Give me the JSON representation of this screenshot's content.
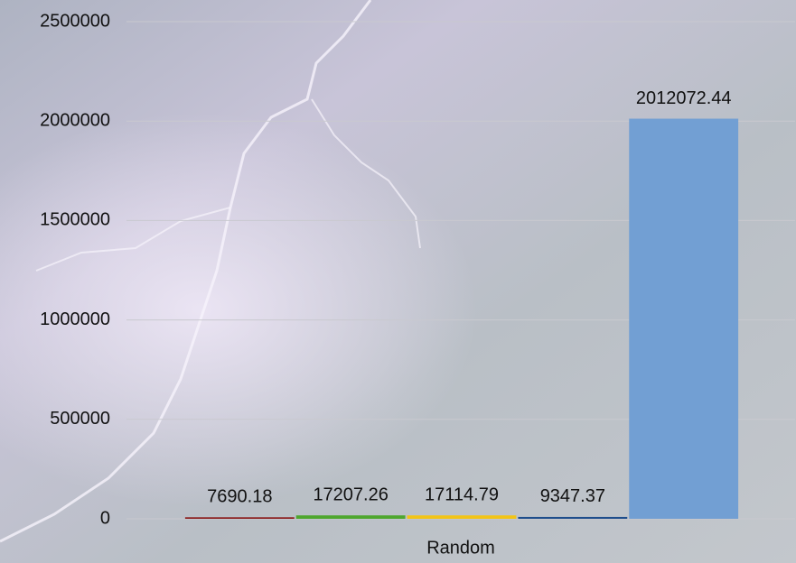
{
  "chart_data": {
    "type": "bar",
    "categories": [
      "Random"
    ],
    "series": [
      {
        "color": "#8b1c1c",
        "values": [
          7690.18
        ]
      },
      {
        "color": "#4ea72e",
        "values": [
          17207.26
        ]
      },
      {
        "color": "#f2c416",
        "values": [
          17114.79
        ]
      },
      {
        "color": "#1f4e8c",
        "values": [
          9347.37
        ]
      },
      {
        "color": "#729fd3",
        "values": [
          2012072.44
        ]
      }
    ],
    "ylim": [
      0,
      2500000
    ],
    "yticks": [
      0,
      500000,
      1000000,
      1500000,
      2000000,
      2500000
    ],
    "grid": true,
    "data_labels": true
  }
}
